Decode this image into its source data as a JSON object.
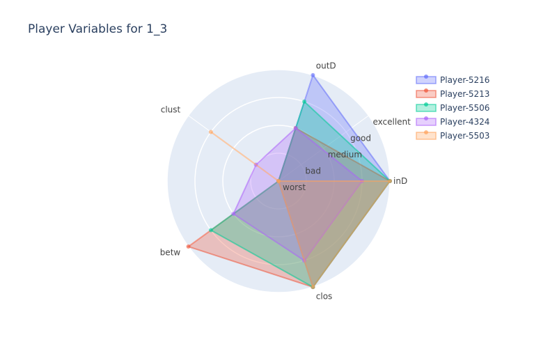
{
  "chart_data": {
    "type": "radar",
    "title": "Player Variables for 1_3",
    "axes": [
      "inD",
      "outD",
      "clust",
      "betw",
      "clos"
    ],
    "radial_ticks": [
      "worst",
      "bad",
      "medium",
      "good",
      "excellent"
    ],
    "range": [
      0,
      4
    ],
    "legend_placement": "top-right",
    "series": [
      {
        "name": "Player-5216",
        "color": "#636efa",
        "values": [
          4,
          4,
          0,
          0,
          4
        ]
      },
      {
        "name": "Player-5213",
        "color": "#ef553b",
        "values": [
          4,
          2,
          0,
          4,
          4
        ]
      },
      {
        "name": "Player-5506",
        "color": "#00cc96",
        "values": [
          4,
          3,
          0,
          3,
          4
        ]
      },
      {
        "name": "Player-4324",
        "color": "#ab63fa",
        "values": [
          3,
          2,
          1,
          2,
          3
        ]
      },
      {
        "name": "Player-5503",
        "color": "#ffa15a",
        "values": [
          4,
          0,
          3,
          0,
          4
        ]
      }
    ]
  }
}
